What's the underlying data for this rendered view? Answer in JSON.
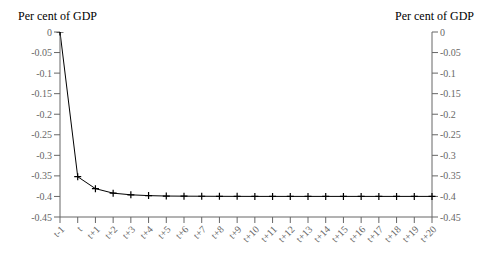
{
  "chart_data": {
    "type": "line",
    "ylabel": "Per cent of GDP",
    "y2label": "Per cent of GDP",
    "categories": [
      "t-1",
      "t",
      "t+1",
      "t+2",
      "t+3",
      "t+4",
      "t+5",
      "t+6",
      "t+7",
      "t+8",
      "t+9",
      "t+10",
      "t+11",
      "t+12",
      "t+13",
      "t+14",
      "t+15",
      "t+16",
      "t+17",
      "t+18",
      "t+19",
      "t+20"
    ],
    "values": [
      0.0,
      -0.352,
      -0.381,
      -0.392,
      -0.396,
      -0.398,
      -0.399,
      -0.3993,
      -0.3995,
      -0.3997,
      -0.3998,
      -0.3999,
      -0.3999,
      -0.3999,
      -0.3999,
      -0.3999,
      -0.3999,
      -0.3999,
      -0.3999,
      -0.3999,
      -0.3999,
      -0.3999
    ],
    "color": "#000000",
    "marker": "plus",
    "grid": false,
    "ylim": [
      -0.45,
      0.0
    ],
    "yticks": [
      0,
      -0.05,
      -0.1,
      -0.15,
      -0.2,
      -0.25,
      -0.3,
      -0.35,
      -0.4,
      -0.45
    ],
    "y2lim": [
      -0.45,
      0.0
    ],
    "y2ticks": [
      0,
      -0.05,
      -0.1,
      -0.15,
      -0.2,
      -0.25,
      -0.3,
      -0.35,
      -0.4,
      -0.45
    ]
  }
}
